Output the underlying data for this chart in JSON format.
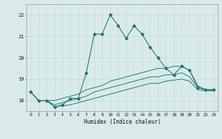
{
  "xlabel": "Humidex (Indice chaleur)",
  "ylabel": "",
  "xlim": [
    -0.5,
    23.5
  ],
  "ylim": [
    17.5,
    22.5
  ],
  "xticks": [
    0,
    1,
    2,
    3,
    4,
    5,
    6,
    7,
    8,
    9,
    10,
    11,
    12,
    13,
    14,
    15,
    16,
    17,
    18,
    19,
    20,
    21,
    22,
    23
  ],
  "yticks": [
    18,
    19,
    20,
    21,
    22
  ],
  "bg_color": "#daeaea",
  "line_color": "#1a7a6e",
  "grid_color": "#c0dada",
  "main_x": [
    0,
    1,
    2,
    3,
    4,
    5,
    6,
    7,
    8,
    9,
    10,
    11,
    12,
    13,
    14,
    15,
    16,
    17,
    18,
    19,
    20,
    21,
    22,
    23
  ],
  "main_y": [
    18.4,
    18.0,
    18.0,
    17.7,
    17.8,
    18.1,
    18.1,
    19.3,
    21.1,
    21.1,
    22.0,
    21.5,
    20.9,
    21.5,
    21.1,
    20.5,
    20.0,
    19.5,
    19.2,
    19.6,
    19.4,
    18.6,
    18.5,
    18.5
  ],
  "line2_x": [
    0,
    1,
    2,
    3,
    4,
    5,
    6,
    7,
    8,
    9,
    10,
    11,
    12,
    13,
    14,
    15,
    16,
    17,
    18,
    19,
    20,
    21,
    22,
    23
  ],
  "line2_y": [
    18.4,
    18.0,
    18.0,
    18.0,
    18.1,
    18.2,
    18.3,
    18.5,
    18.6,
    18.7,
    18.9,
    19.0,
    19.1,
    19.2,
    19.3,
    19.4,
    19.5,
    19.5,
    19.6,
    19.6,
    19.4,
    18.7,
    18.5,
    18.5
  ],
  "line3_x": [
    0,
    1,
    2,
    3,
    4,
    5,
    6,
    7,
    8,
    9,
    10,
    11,
    12,
    13,
    14,
    15,
    16,
    17,
    18,
    19,
    20,
    21,
    22,
    23
  ],
  "line3_y": [
    18.4,
    18.0,
    18.0,
    17.8,
    17.9,
    18.0,
    18.1,
    18.2,
    18.4,
    18.5,
    18.6,
    18.7,
    18.8,
    18.9,
    19.0,
    19.1,
    19.1,
    19.2,
    19.2,
    19.3,
    19.1,
    18.6,
    18.5,
    18.5
  ],
  "line4_x": [
    0,
    1,
    2,
    3,
    4,
    5,
    6,
    7,
    8,
    9,
    10,
    11,
    12,
    13,
    14,
    15,
    16,
    17,
    18,
    19,
    20,
    21,
    22,
    23
  ],
  "line4_y": [
    18.4,
    18.0,
    18.0,
    17.7,
    17.75,
    17.8,
    17.9,
    18.0,
    18.1,
    18.2,
    18.3,
    18.4,
    18.5,
    18.6,
    18.7,
    18.8,
    18.8,
    18.9,
    18.95,
    19.0,
    18.9,
    18.5,
    18.45,
    18.45
  ]
}
